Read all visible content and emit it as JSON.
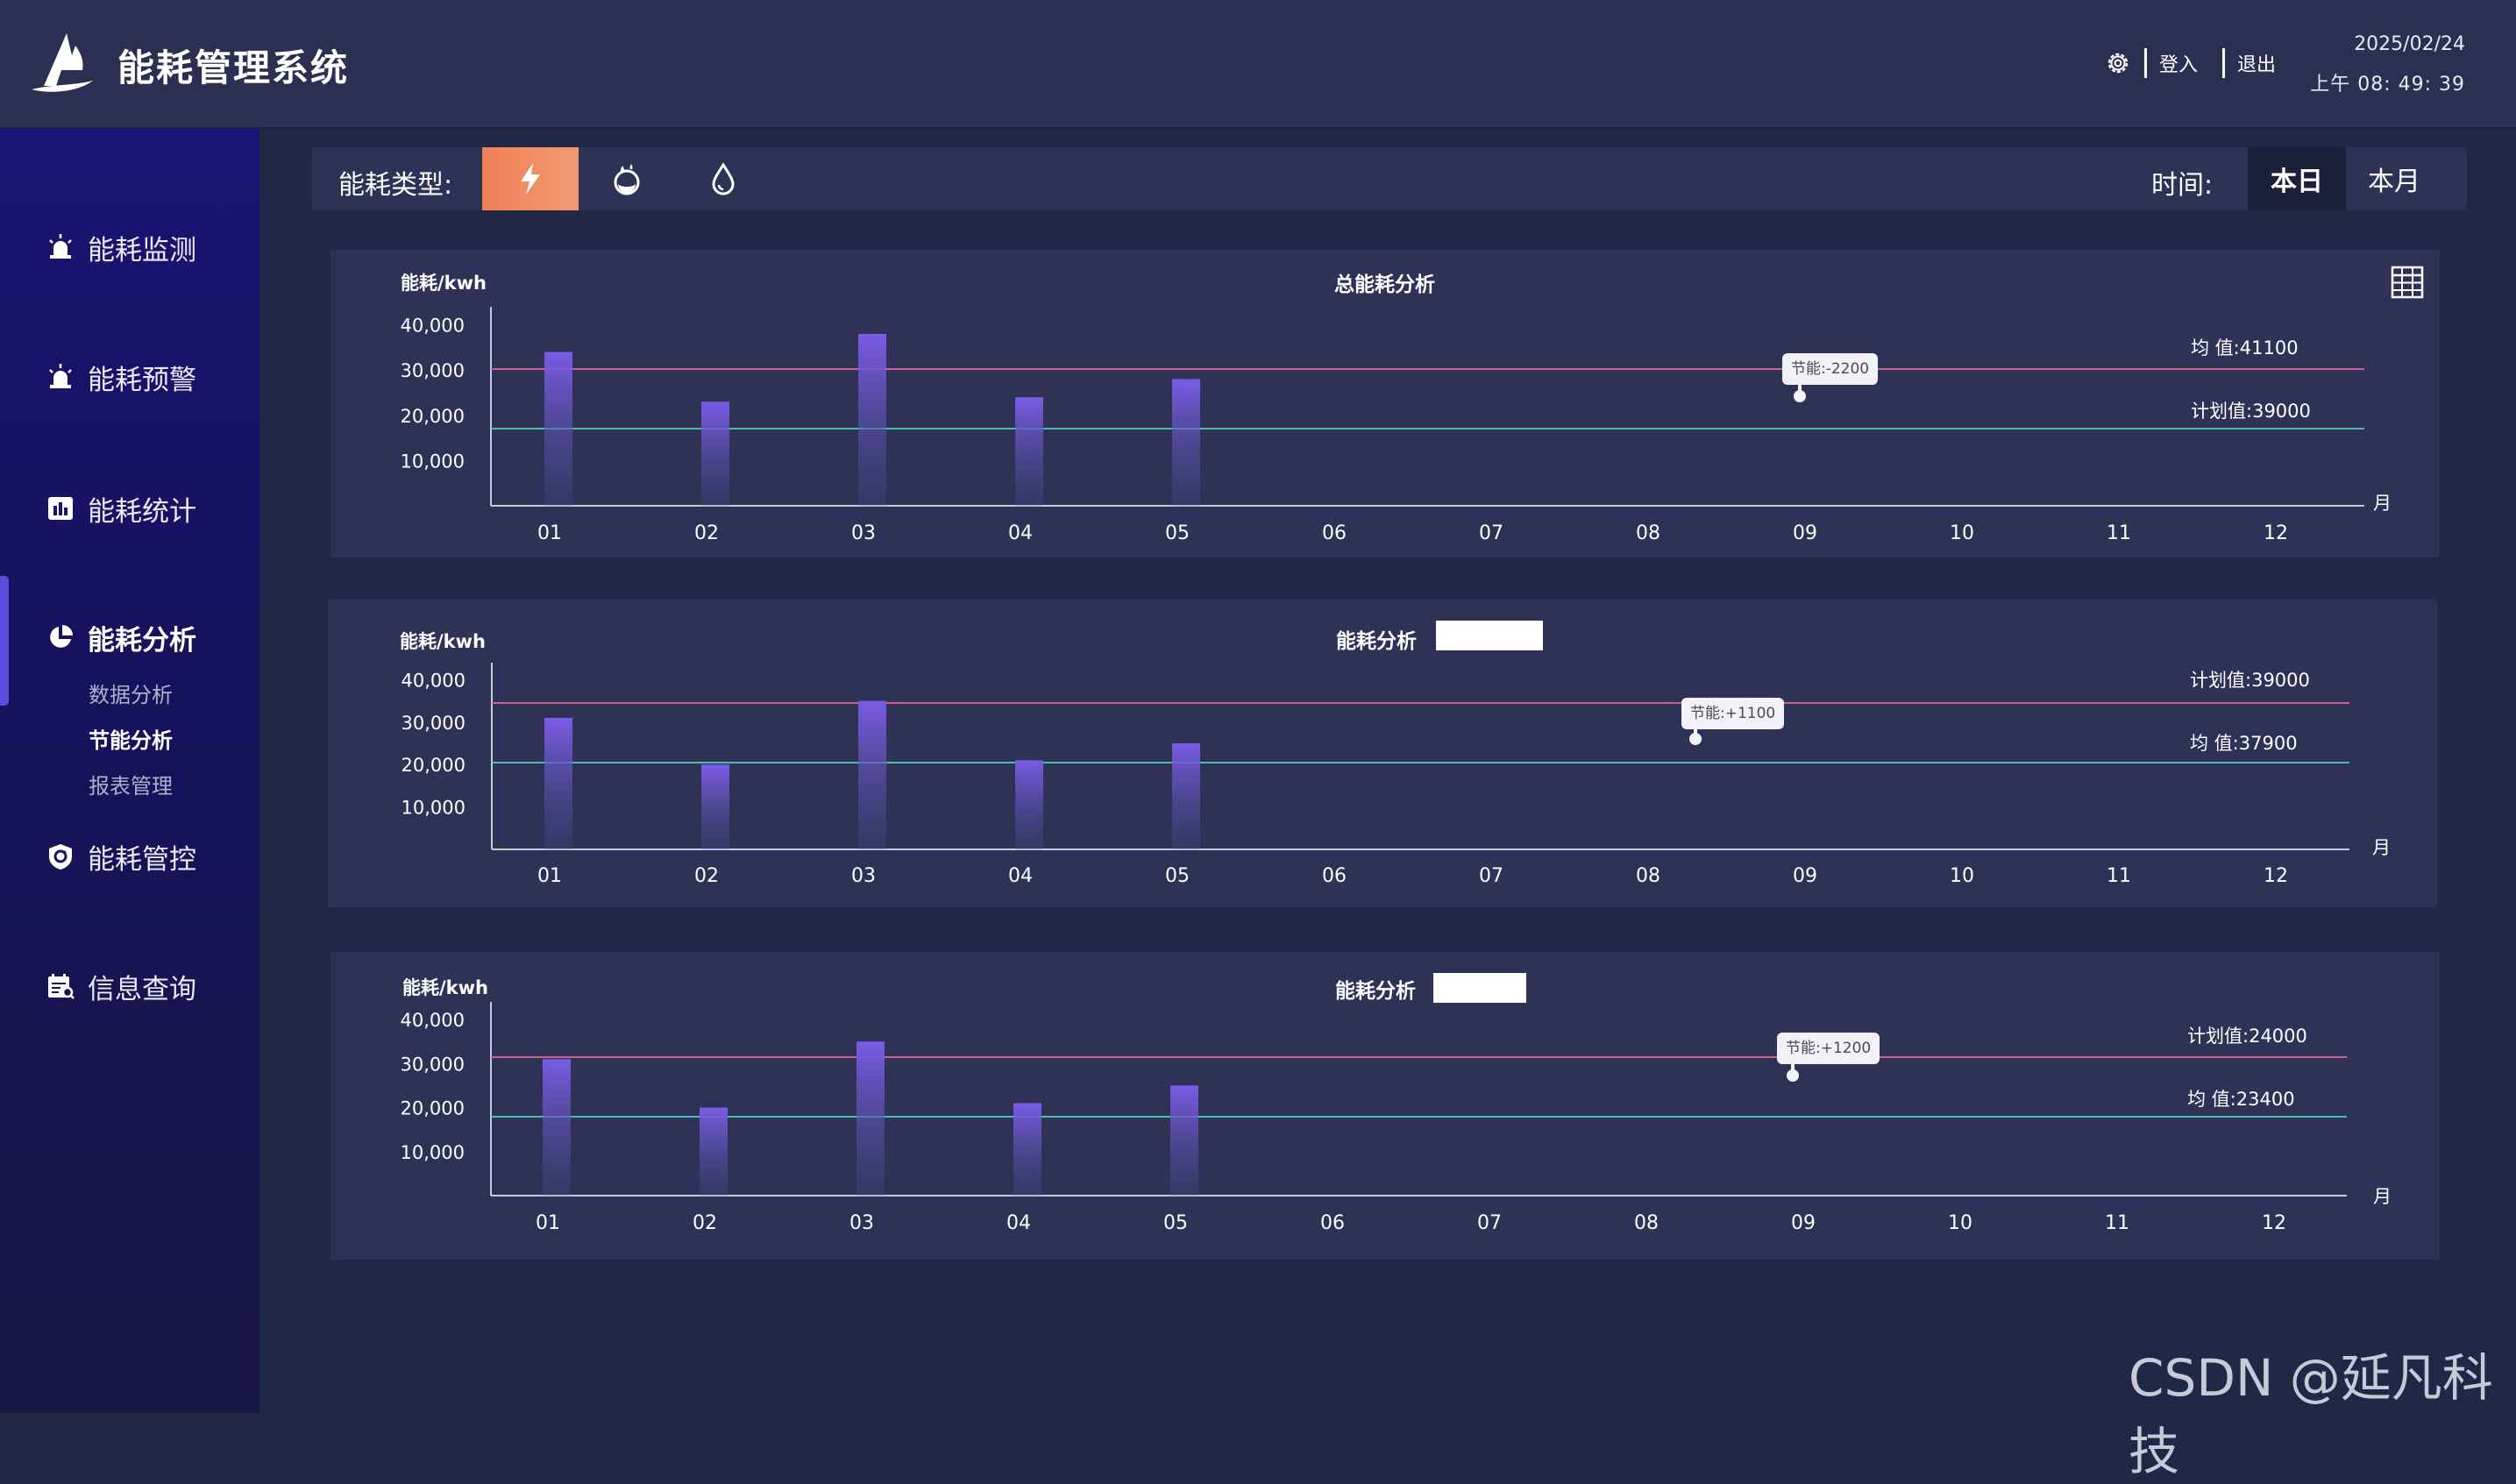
{
  "header": {
    "title": "能耗管理系统",
    "login": "登入",
    "logout": "退出",
    "date": "2025/02/24",
    "time": "上午 08: 49: 39"
  },
  "sidebar": {
    "items": [
      {
        "label": "能耗监测",
        "icon": "alarm-light-icon"
      },
      {
        "label": "能耗预警",
        "icon": "alarm-light-icon"
      },
      {
        "label": "能耗统计",
        "icon": "bar-chart-icon"
      },
      {
        "label": "能耗分析",
        "icon": "pie-chart-icon",
        "active": true
      },
      {
        "label": "能耗管控",
        "icon": "shield-refresh-icon"
      },
      {
        "label": "信息查询",
        "icon": "calendar-search-icon"
      }
    ],
    "sub_items": [
      {
        "label": "数据分析"
      },
      {
        "label": "节能分析",
        "active": true
      },
      {
        "label": "报表管理"
      }
    ]
  },
  "filter": {
    "type_label": "能耗类型:",
    "types": [
      "electricity-icon",
      "water-quality-icon",
      "water-drop-icon"
    ],
    "time_label": "时间:",
    "time_options": [
      {
        "label": "本日",
        "active": true
      },
      {
        "label": "本月"
      }
    ]
  },
  "colors": {
    "accent_orange": "#ef7f56",
    "bar_purple": "#7a5ce6",
    "line_plan": "#d35e8c",
    "line_avg": "#48c0a5"
  },
  "chart_data": [
    {
      "type": "bar",
      "title": "总能耗分析",
      "ylabel": "能耗/kwh",
      "xlabel": "月",
      "categories": [
        "01",
        "02",
        "03",
        "04",
        "05",
        "06",
        "07",
        "08",
        "09",
        "10",
        "11",
        "12"
      ],
      "values": [
        34000,
        23000,
        38000,
        24000,
        28000,
        null,
        null,
        null,
        null,
        null,
        null,
        null
      ],
      "yticks": [
        "10,000",
        "20,000",
        "30,000",
        "40,000"
      ],
      "ylim": [
        0,
        44000
      ],
      "ref_lines": [
        {
          "label": "均    值:",
          "value": 41100,
          "color": "#d35e8c"
        },
        {
          "label": "计划值:",
          "value": 39000,
          "color": "#48c0a5"
        }
      ],
      "annotation": "节能:-2200"
    },
    {
      "type": "bar",
      "title": "能耗分析",
      "ylabel": "能耗/kwh",
      "xlabel": "月",
      "categories": [
        "01",
        "02",
        "03",
        "04",
        "05",
        "06",
        "07",
        "08",
        "09",
        "10",
        "11",
        "12"
      ],
      "values": [
        31000,
        20000,
        35000,
        21000,
        25000,
        null,
        null,
        null,
        null,
        null,
        null,
        null
      ],
      "yticks": [
        "10,000",
        "20,000",
        "30,000",
        "40,000"
      ],
      "ylim": [
        0,
        44000
      ],
      "ref_lines": [
        {
          "label": "计划值:",
          "value": 39000,
          "color": "#d35e8c"
        },
        {
          "label": "均    值:",
          "value": 37900,
          "color": "#48c0a5"
        }
      ],
      "annotation": "节能:+1100"
    },
    {
      "type": "bar",
      "title": "能耗分析",
      "ylabel": "能耗/kwh",
      "xlabel": "月",
      "categories": [
        "01",
        "02",
        "03",
        "04",
        "05",
        "06",
        "07",
        "08",
        "09",
        "10",
        "11",
        "12"
      ],
      "values": [
        31000,
        20000,
        35000,
        21000,
        25000,
        null,
        null,
        null,
        null,
        null,
        null,
        null
      ],
      "yticks": [
        "10,000",
        "20,000",
        "30,000",
        "40,000"
      ],
      "ylim": [
        0,
        44000
      ],
      "ref_lines": [
        {
          "label": "计划值:",
          "value": 24000,
          "color": "#d35e8c"
        },
        {
          "label": "均    值:",
          "value": 23400,
          "color": "#48c0a5"
        }
      ],
      "annotation": "节能:+1200"
    }
  ],
  "watermark": "CSDN @延凡科技"
}
